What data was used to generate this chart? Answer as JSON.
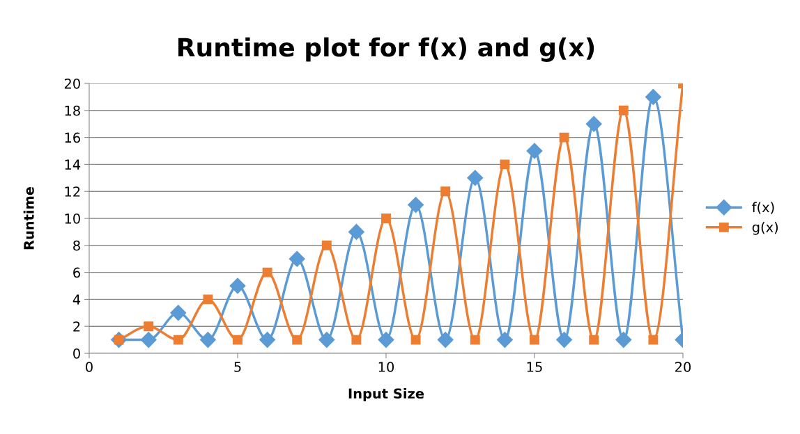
{
  "chart_data": {
    "type": "line",
    "title": "Runtime plot for f(x) and g(x)",
    "xlabel": "Input Size",
    "ylabel": "Runtime",
    "x": [
      1,
      2,
      3,
      4,
      5,
      6,
      7,
      8,
      9,
      10,
      11,
      12,
      13,
      14,
      15,
      16,
      17,
      18,
      19,
      20
    ],
    "series": [
      {
        "name": "f(x)",
        "color": "#5b9bd5",
        "marker": "diamond",
        "values": [
          1,
          1,
          3,
          1,
          5,
          1,
          7,
          1,
          9,
          1,
          11,
          1,
          13,
          1,
          15,
          1,
          17,
          1,
          19,
          1
        ]
      },
      {
        "name": "g(x)",
        "color": "#ed7d31",
        "marker": "square",
        "values": [
          1,
          2,
          1,
          4,
          1,
          6,
          1,
          8,
          1,
          10,
          1,
          12,
          1,
          14,
          1,
          16,
          1,
          18,
          1,
          20
        ]
      }
    ],
    "xlim": [
      0,
      20
    ],
    "xticks": [
      0,
      5,
      10,
      15,
      20
    ],
    "ylim": [
      0,
      20
    ],
    "yticks": [
      0,
      2,
      4,
      6,
      8,
      10,
      12,
      14,
      16,
      18,
      20
    ],
    "grid": "y",
    "legend": "right",
    "line_style": "solid"
  }
}
